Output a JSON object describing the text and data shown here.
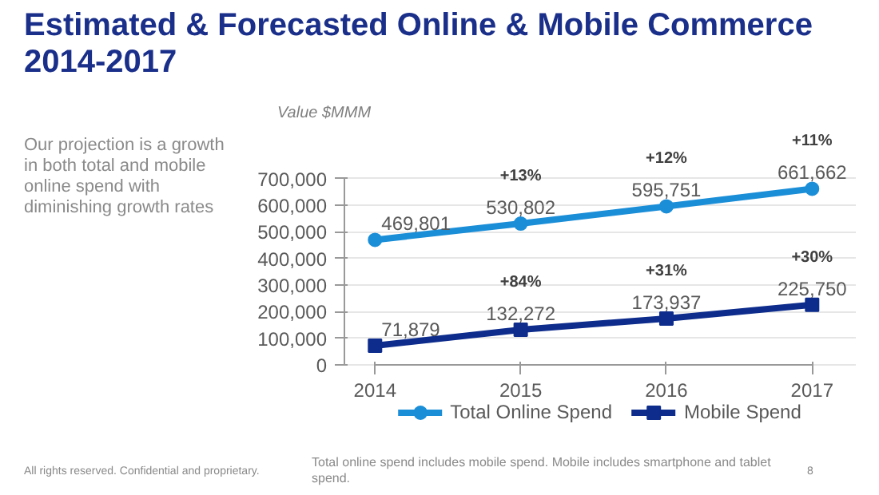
{
  "chart_data": {
    "type": "line",
    "title": "Estimated & Forecasted Online & Mobile Commerce 2014-2017",
    "ylabel": "Value $MMM",
    "x": [
      2014,
      2015,
      2016,
      2017
    ],
    "xlim": [
      2014,
      2017
    ],
    "xticks": [
      2014,
      2015,
      2016,
      2017
    ],
    "ylim": [
      0,
      700000
    ],
    "yticks": [
      0,
      {
        "value": 100000,
        "label": "100,000"
      },
      {
        "value": 200000,
        "label": "200,000"
      },
      {
        "value": 300000,
        "label": "300,000"
      },
      {
        "value": 400000,
        "label": "400,000"
      },
      {
        "value": 500000,
        "label": "500,000"
      },
      {
        "value": 600000,
        "label": "600,000"
      },
      {
        "value": 700000,
        "label": "700,000"
      }
    ],
    "series": [
      {
        "name": "Total Online Spend",
        "color": "#1b8ed8",
        "marker": "circle",
        "values": [
          469801,
          530802,
          595751,
          661662
        ],
        "value_labels": [
          "469,801",
          "530,802",
          "595,751",
          "661,662"
        ]
      },
      {
        "name": "Mobile Spend",
        "color": "#0d2c8c",
        "marker": "square",
        "values": [
          71879,
          132272,
          173937,
          225750
        ],
        "value_labels": [
          "71,879",
          "132,272",
          "173,937",
          "225,750"
        ]
      }
    ],
    "annotations": [
      "Our projection is a growth in both total and mobile online spend with diminishing growth rates",
      {
        "text": "+13%",
        "x": 2015,
        "y": 530802
      },
      {
        "text": "+12%",
        "x": 2016,
        "y": 595751
      },
      {
        "text": "+11%",
        "x": 2017,
        "y": 661662
      },
      {
        "text": "+84%",
        "x": 2015,
        "y": 132272
      },
      {
        "text": "+31%",
        "x": 2016,
        "y": 173937
      },
      {
        "text": "+30%",
        "x": 2017,
        "y": 225750
      },
      "All rights reserved. Confidential and proprietary.",
      "Total online spend includes mobile spend. Mobile includes smartphone and tablet spend.",
      "8"
    ],
    "grid": "y",
    "legend": "bottom"
  }
}
